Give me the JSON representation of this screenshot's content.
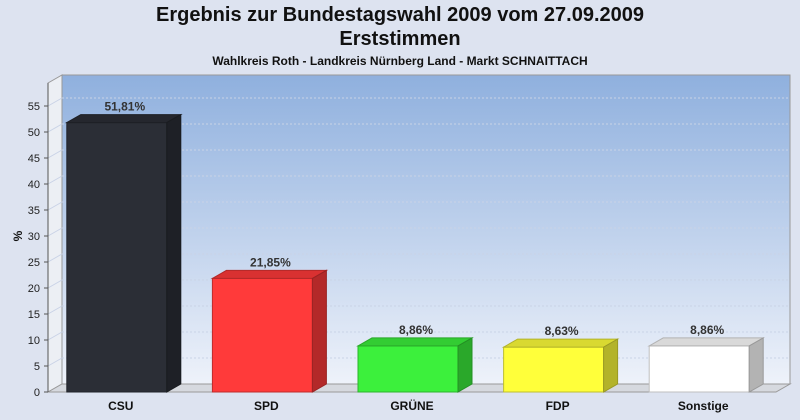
{
  "header": {
    "title_line1": "Ergebnis zur Bundestagswahl 2009 vom 27.09.2009",
    "title_line2": "Erststimmen",
    "subtitle": "Wahlkreis Roth - Landkreis Nürnberg Land - Markt SCHNAITTACH"
  },
  "chart_data": {
    "type": "bar",
    "title": "Ergebnis zur Bundestagswahl 2009 vom 27.09.2009 Erststimmen",
    "subtitle": "Wahlkreis Roth - Landkreis Nürnberg Land - Markt SCHNAITTACH",
    "xlabel": "",
    "ylabel": "%",
    "ylim": [
      0,
      55
    ],
    "yticks": [
      0,
      5,
      10,
      15,
      20,
      25,
      30,
      35,
      40,
      45,
      50,
      55
    ],
    "grid": true,
    "categories": [
      "CSU",
      "SPD",
      "GRÜNE",
      "FDP",
      "Sonstige"
    ],
    "values": [
      51.81,
      21.85,
      8.86,
      8.63,
      8.86
    ],
    "value_labels": [
      "51,81%",
      "21,85%",
      "8,86%",
      "8,63%",
      "8,86%"
    ],
    "colors": [
      "#2b2e36",
      "#ff3a3a",
      "#3cf03c",
      "#ffff3a",
      "#ffffff"
    ]
  }
}
